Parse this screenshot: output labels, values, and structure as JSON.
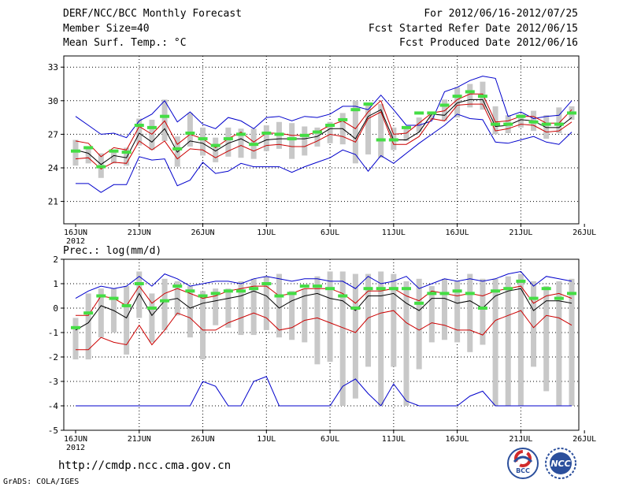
{
  "header": {
    "title": "DERF/NCC/BCC Monthly Forecast",
    "member_size": "Member Size=40",
    "variable": "Mean Surf. Temp.: °C",
    "period": "For 2012/06/16-2012/07/25",
    "fcst_started": "Fcst Started Refer Date 2012/06/15",
    "fcst_produced": "Fcst Produced Date 2012/06/16"
  },
  "footer": {
    "url": "http://cmdp.ncc.cma.gov.cn",
    "credit": "GrADS: COLA/IGES",
    "logo_bcc": "BCC",
    "logo_ncc": "NCC"
  },
  "colors": {
    "ensemble_box": "#c8c8c8",
    "max_line": "#0000cc",
    "min_line": "#0000cc",
    "upper_line": "#cc0000",
    "lower_line": "#cc0000",
    "mean_line": "#000000",
    "climatology_bar": "#44dd44"
  },
  "chart_data": [
    {
      "type": "line",
      "title": "Mean Surf. Temp.: °C",
      "ylim": [
        19,
        34
      ],
      "yticks": [
        21,
        24,
        27,
        30,
        33
      ],
      "x_tick_labels": [
        "16JUN",
        "21JUN",
        "26JUN",
        "1JUL",
        "6JUL",
        "11JUL",
        "16JUL",
        "21JUL",
        "26JUL"
      ],
      "year_label": "2012",
      "days": 40,
      "series": [
        {
          "name": "max",
          "values": [
            28.6,
            27.8,
            27,
            27.1,
            26.7,
            28.2,
            28.8,
            30,
            28.1,
            29,
            27.9,
            27.5,
            28.5,
            28.2,
            27.5,
            28.5,
            28.6,
            28.2,
            28.6,
            28.5,
            28.8,
            29.5,
            29.5,
            29.2,
            30.5,
            29.2,
            27.8,
            27.8,
            28.2,
            30.8,
            31.2,
            31.8,
            32.2,
            32,
            28.6,
            29,
            28.4,
            28.6,
            28.7,
            30
          ]
        },
        {
          "name": "upper",
          "values": [
            26.4,
            26.2,
            25,
            25.8,
            25.6,
            27.7,
            27,
            28.2,
            26.1,
            27,
            26.6,
            25.8,
            26.6,
            27.2,
            26.3,
            27.1,
            27.1,
            26.9,
            26.9,
            27.2,
            27.8,
            28.2,
            27.5,
            29,
            30,
            27,
            27.1,
            28,
            28.9,
            29.1,
            30.1,
            30.6,
            30.6,
            28.1,
            28.2,
            28.6,
            28.6,
            28,
            28,
            29.2
          ]
        },
        {
          "name": "mean",
          "values": [
            25.6,
            25.3,
            24.3,
            25.1,
            24.9,
            27.1,
            26.3,
            27.5,
            25.4,
            26.4,
            26.2,
            25.5,
            26.2,
            26.6,
            26,
            26.5,
            26.6,
            26.6,
            26.6,
            26.8,
            27.5,
            27.5,
            26.6,
            28.6,
            29.2,
            26.5,
            26.5,
            27.2,
            28.8,
            28.7,
            29.8,
            30.1,
            30.1,
            27.7,
            27.8,
            28.3,
            28.2,
            27.6,
            27.6,
            28.5
          ]
        },
        {
          "name": "lower",
          "values": [
            24.8,
            24.9,
            23.9,
            24.5,
            24.4,
            26.4,
            25.6,
            26.4,
            24.8,
            25.7,
            25.6,
            24.9,
            25.5,
            26,
            25.5,
            26,
            26.1,
            25.9,
            25.9,
            26.4,
            27,
            26.8,
            26.3,
            28.4,
            29,
            26.1,
            26.1,
            26.8,
            28.4,
            28.2,
            29.6,
            29.7,
            29.7,
            27.3,
            27.5,
            27.9,
            27.8,
            27.2,
            27.3,
            28.1
          ]
        },
        {
          "name": "min",
          "values": [
            22.6,
            22.6,
            21.8,
            22.5,
            22.5,
            25,
            24.7,
            24.8,
            22.4,
            22.9,
            24.5,
            23.5,
            23.7,
            24.4,
            24.1,
            24.1,
            24.1,
            23.6,
            24.1,
            24.5,
            24.9,
            25.6,
            25.2,
            23.7,
            25.1,
            24.4,
            25.3,
            26.2,
            27,
            27.8,
            28.8,
            28.4,
            28.3,
            26.3,
            26.2,
            26.5,
            26.8,
            26.3,
            26.1,
            27.2
          ]
        },
        {
          "name": "climatology",
          "values": [
            25.5,
            25.8,
            24.1,
            25.5,
            25.4,
            27.8,
            27.6,
            28.6,
            25.7,
            27.1,
            26.6,
            26,
            26.6,
            27,
            26.1,
            27.1,
            27,
            26.6,
            26.9,
            27.2,
            27.8,
            28.3,
            29.2,
            29.7,
            26.5,
            26.5,
            27.6,
            28.9,
            28.9,
            29.6,
            30.4,
            30.8,
            30.4,
            27.9,
            27.9,
            28.6,
            28.1,
            27.9,
            27.9,
            28.9
          ]
        },
        {
          "name": "box_top",
          "values": [
            26.5,
            25.8,
            25.3,
            25.6,
            25.8,
            28.4,
            28.3,
            30.1,
            26.8,
            28.9,
            27.6,
            26.7,
            27.6,
            27.5,
            27.5,
            27.8,
            28.1,
            28,
            27.7,
            27.6,
            28.1,
            28.9,
            30,
            29.8,
            29.7,
            27.6,
            27.5,
            28.5,
            29,
            30.1,
            31.2,
            31.5,
            31.7,
            29.5,
            28.7,
            28.8,
            29.1,
            28.7,
            29.4,
            29.5
          ]
        },
        {
          "name": "box_bottom",
          "values": [
            24.2,
            24.4,
            23.1,
            24.4,
            24.2,
            26,
            25.6,
            26.4,
            24.1,
            25.9,
            25.1,
            24.5,
            25,
            24.9,
            24.8,
            25.5,
            25.7,
            24.8,
            25.1,
            25.9,
            26.2,
            26.1,
            24.4,
            25.2,
            24.9,
            25.6,
            26.4,
            27.2,
            28.3,
            28.2,
            28.5,
            29.4,
            29.2,
            27,
            27.1,
            27.6,
            27.3,
            26.6,
            27.1,
            28.3
          ]
        }
      ]
    },
    {
      "type": "line",
      "title": "Prec.: log(mm/d)",
      "ylim": [
        -5,
        2
      ],
      "yticks": [
        -5,
        -4,
        -3,
        -2,
        -1,
        0,
        1,
        2
      ],
      "x_tick_labels": [
        "16JUN",
        "21JUN",
        "26JUN",
        "1JUL",
        "6JUL",
        "11JUL",
        "16JUL",
        "21JUL",
        "26JUL"
      ],
      "year_label": "2012",
      "days": 40,
      "series": [
        {
          "name": "max",
          "values": [
            0.4,
            0.7,
            0.9,
            0.8,
            0.9,
            1.3,
            0.9,
            1.4,
            1.2,
            0.9,
            1,
            1.1,
            1.1,
            1,
            1.2,
            1.3,
            1.2,
            1.1,
            1.2,
            1.2,
            1.1,
            1.1,
            0.8,
            1.3,
            1,
            1.1,
            1.3,
            0.8,
            1,
            1.2,
            1.1,
            1.2,
            1.1,
            1.2,
            1.4,
            1.5,
            0.9,
            1.3,
            1.2,
            1.1
          ]
        },
        {
          "name": "upper",
          "values": [
            -0.3,
            -0.3,
            0.5,
            0.4,
            0.1,
            0.9,
            0.2,
            0.6,
            0.8,
            0.6,
            0.4,
            0.5,
            0.7,
            0.8,
            0.9,
            0.9,
            0.5,
            0.6,
            0.8,
            0.8,
            0.8,
            0.6,
            0.2,
            0.7,
            0.7,
            0.8,
            0.5,
            0.3,
            0.7,
            0.6,
            0.5,
            0.6,
            0.5,
            0.7,
            0.8,
            0.9,
            0.2,
            0.5,
            0.6,
            0.4
          ]
        },
        {
          "name": "mean",
          "values": [
            -0.9,
            -0.6,
            0.1,
            -0.1,
            -0.4,
            0.6,
            -0.3,
            0.3,
            0.4,
            0,
            0.2,
            0.3,
            0.4,
            0.5,
            0.7,
            0.5,
            0,
            0.3,
            0.5,
            0.6,
            0.4,
            0.3,
            -0.1,
            0.5,
            0.5,
            0.6,
            0.2,
            -0.1,
            0.4,
            0.4,
            0.2,
            0.3,
            0,
            0.5,
            0.7,
            0.8,
            -0.1,
            0.3,
            0.3,
            0.2
          ]
        },
        {
          "name": "lower",
          "values": [
            -1.7,
            -1.7,
            -1.2,
            -1.4,
            -1.5,
            -0.7,
            -1.5,
            -0.9,
            -0.2,
            -0.4,
            -0.9,
            -0.9,
            -0.6,
            -0.4,
            -0.2,
            -0.4,
            -0.9,
            -0.8,
            -0.5,
            -0.4,
            -0.6,
            -0.8,
            -1,
            -0.4,
            -0.2,
            -0.1,
            -0.6,
            -0.9,
            -0.6,
            -0.7,
            -0.9,
            -0.9,
            -1.1,
            -0.5,
            -0.3,
            -0.1,
            -0.8,
            -0.3,
            -0.4,
            -0.7
          ]
        },
        {
          "name": "min",
          "values": [
            -4,
            -4,
            -4,
            -4,
            -4,
            -4,
            -4,
            -4,
            -4,
            -4,
            -3,
            -3.2,
            -4,
            -4,
            -3,
            -2.8,
            -4,
            -4,
            -4,
            -4,
            -4,
            -3.2,
            -2.9,
            -3.5,
            -4,
            -3.1,
            -3.8,
            -4,
            -4,
            -4,
            -4,
            -3.6,
            -3.4,
            -4,
            -4,
            -4,
            -4,
            -4,
            -4,
            -4
          ]
        },
        {
          "name": "climatology",
          "values": [
            -0.8,
            -0.2,
            0.5,
            0.4,
            0.1,
            1,
            0,
            0.3,
            0.9,
            0.7,
            0.5,
            0.6,
            0.7,
            0.7,
            0.8,
            1,
            0.5,
            0.6,
            0.9,
            0.9,
            0.8,
            0.5,
            0,
            0.8,
            0.8,
            0.8,
            0.8,
            0.2,
            0.6,
            0.6,
            0.7,
            0.6,
            0,
            0.7,
            0.8,
            1.1,
            0.4,
            0.8,
            0.4,
            0.6
          ]
        },
        {
          "name": "box_top",
          "values": [
            -0.4,
            0.6,
            0.8,
            0.8,
            0.9,
            1.5,
            0.6,
            1.2,
            1.1,
            0.9,
            0.7,
            0.8,
            0.8,
            1.1,
            1.2,
            1.3,
            1.4,
            0.7,
            0.8,
            1.3,
            1.5,
            1.5,
            1.4,
            1.4,
            1.5,
            1.4,
            1.1,
            1.2,
            0.9,
            1.2,
            1.1,
            1.4,
            1.2,
            1.2,
            1.3,
            1.4,
            1.1,
            0.9,
            1.1,
            1.2
          ]
        },
        {
          "name": "box_bottom",
          "values": [
            -2.1,
            -2.1,
            -1.2,
            -1,
            -1.9,
            -0.4,
            -1.4,
            -0.9,
            -0.3,
            -1.2,
            -2.1,
            -0.7,
            -0.8,
            -1.1,
            -1.1,
            -0.9,
            -1.2,
            -1.3,
            -1.4,
            -2.3,
            -2.2,
            -4,
            -3.7,
            -2.4,
            -4,
            -2.4,
            -4,
            -2.5,
            -1.4,
            -1.3,
            -1.4,
            -1.8,
            -1.5,
            -4,
            -4,
            -4,
            -2.4,
            -3.4,
            -4,
            -4
          ]
        }
      ]
    }
  ]
}
